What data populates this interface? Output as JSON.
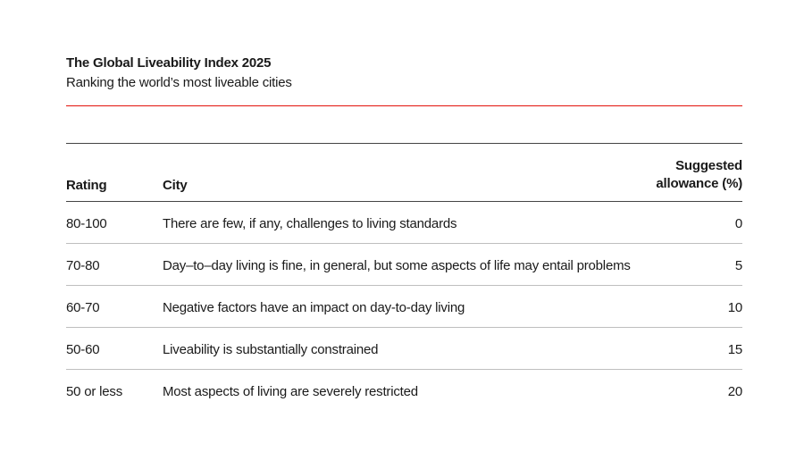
{
  "header": {
    "title": "The Global Liveability Index 2025",
    "subtitle": "Ranking the world’s most liveable cities"
  },
  "table": {
    "columns": {
      "rating": "Rating",
      "city": "City",
      "allowance_line1": "Suggested",
      "allowance_line2": "allowance (%)"
    },
    "rows": [
      {
        "rating": "80-100",
        "city": "There are few, if any, challenges to living standards",
        "allowance": "0"
      },
      {
        "rating": "70-80",
        "city": "Day–to–day living is fine, in general, but some aspects of life may entail problems",
        "allowance": "5"
      },
      {
        "rating": "60-70",
        "city": "Negative factors have an impact on day-to-day living",
        "allowance": "10"
      },
      {
        "rating": "50-60",
        "city": "Liveability is substantially constrained",
        "allowance": "15"
      },
      {
        "rating": "50 or less",
        "city": "Most aspects of living are severely restricted",
        "allowance": "20"
      }
    ]
  },
  "colors": {
    "accent_rule": "#e3120b",
    "text": "#1a1a1a",
    "row_divider": "#bfbfbf"
  }
}
